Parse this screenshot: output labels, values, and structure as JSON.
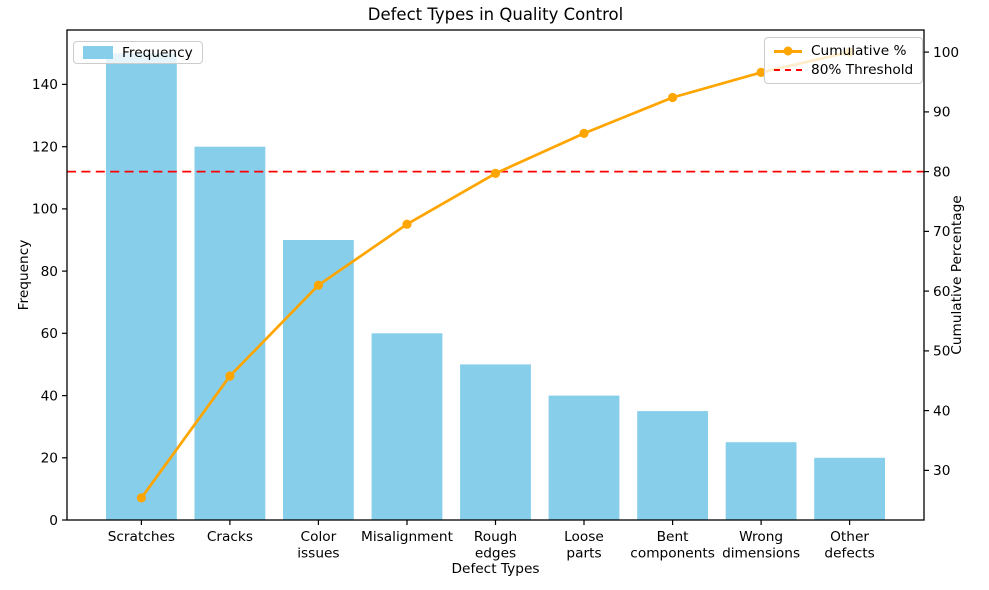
{
  "chart_data": {
    "type": "bar",
    "subtype": "pareto",
    "title": "Defect Types in Quality Control",
    "xlabel": "Defect Types",
    "ylabel_left": "Frequency",
    "ylabel_right": "Cumulative Percentage",
    "categories": [
      "Scratches",
      "Cracks",
      "Color issues",
      "Misalignment",
      "Rough edges",
      "Loose parts",
      "Bent components",
      "Wrong dimensions",
      "Other defects"
    ],
    "category_label_lines": [
      [
        "Scratches"
      ],
      [
        "Cracks"
      ],
      [
        "Color",
        "issues"
      ],
      [
        "Misalignment"
      ],
      [
        "Rough",
        "edges"
      ],
      [
        "Loose",
        "parts"
      ],
      [
        "Bent",
        "components"
      ],
      [
        "Wrong",
        "dimensions"
      ],
      [
        "Other",
        "defects"
      ]
    ],
    "series": [
      {
        "name": "Frequency",
        "type": "bar",
        "axis": "left",
        "values": [
          150,
          120,
          90,
          60,
          50,
          40,
          35,
          25,
          20
        ]
      },
      {
        "name": "Cumulative %",
        "type": "line",
        "axis": "right",
        "values": [
          25.4,
          45.8,
          61.0,
          71.2,
          79.7,
          86.4,
          92.4,
          96.6,
          100.0
        ]
      },
      {
        "name": "80% Threshold",
        "type": "hline",
        "axis": "right",
        "value": 80
      }
    ],
    "ylim_left": [
      0,
      157.5
    ],
    "yticks_left": [
      0,
      20,
      40,
      60,
      80,
      100,
      120,
      140
    ],
    "ylim_right": [
      21.7,
      103.7
    ],
    "yticks_right": [
      30,
      40,
      50,
      60,
      70,
      80,
      90,
      100
    ],
    "grid": false,
    "legend": {
      "frequency_label": "Frequency",
      "cumulative_label": "Cumulative %",
      "threshold_label": "80% Threshold",
      "positions": [
        "upper left",
        "upper right"
      ]
    },
    "colors": {
      "bar": "#87CEEB",
      "line": "#FFA500",
      "threshold": "#FF0000",
      "text": "#000000",
      "spine": "#000000",
      "legend_border": "#cccccc"
    }
  }
}
